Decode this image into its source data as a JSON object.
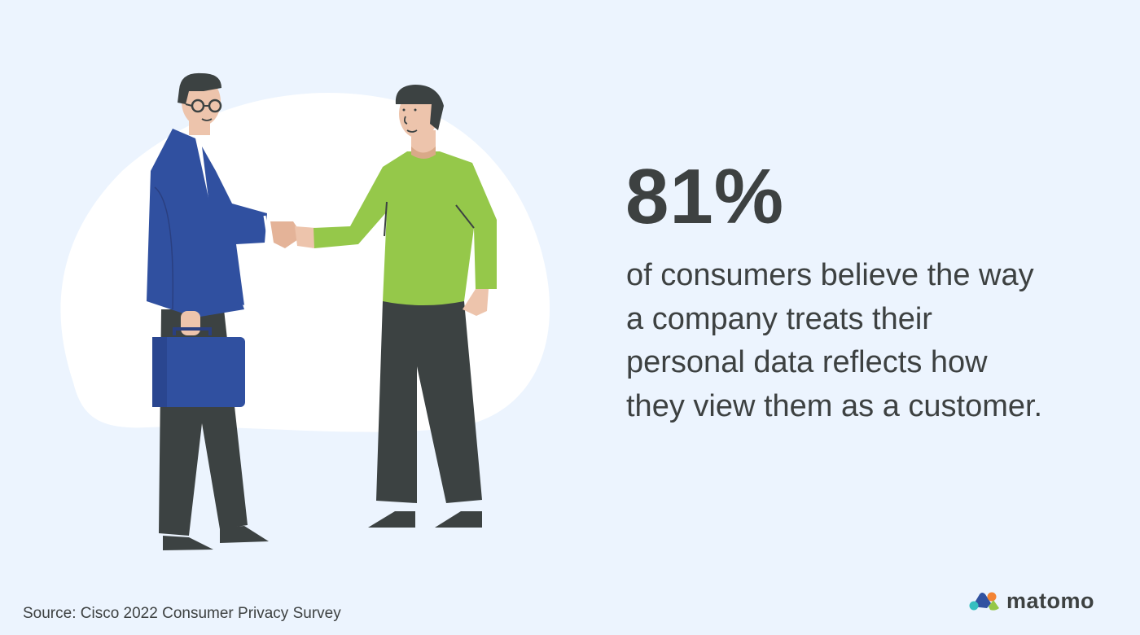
{
  "headline": {
    "stat": "81%",
    "lines": [
      "of consumers believe the way",
      "a company treats their",
      "personal data reflects how",
      "they view them as a customer."
    ]
  },
  "footer": {
    "source": "Source: Cisco 2022 Consumer Privacy Survey"
  },
  "brand": {
    "name": "matomo",
    "colors": {
      "blue": "#3152a0",
      "orange": "#f38334",
      "teal": "#35bfc0",
      "green": "#95c748"
    }
  },
  "illustration": {
    "subject": "handshake-icon",
    "colors": {
      "background": "#ecf4fe",
      "blob": "#ffffff",
      "suit": "#3050a0",
      "sweater": "#95c84a",
      "skin": "#edc4ac",
      "dark": "#3c4242"
    }
  }
}
